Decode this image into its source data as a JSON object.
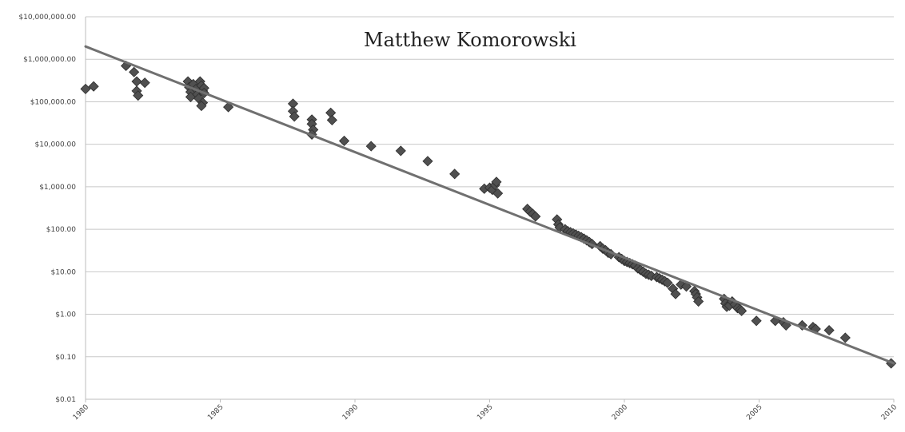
{
  "chart_data": {
    "type": "scatter",
    "annotation": "Matthew Komorowski",
    "y_scale": "log",
    "ylim": [
      0.01,
      10000000
    ],
    "xlim": [
      1980,
      2010
    ],
    "grid": true,
    "y_tick_values": [
      10000000,
      1000000,
      100000,
      10000,
      1000,
      100,
      10,
      1,
      0.1,
      0.01
    ],
    "y_tick_labels": [
      "$10,000,000.00",
      "$1,000,000.00",
      "$100,000.00",
      "$10,000.00",
      "$1,000.00",
      "$100.00",
      "$10.00",
      "$1.00",
      "$0.10",
      "$0.01"
    ],
    "x_tick_values": [
      1980,
      1985,
      1990,
      1995,
      2000,
      2005,
      2010
    ],
    "x_tick_labels": [
      "1980",
      "1985",
      "1990",
      "1995",
      "2000",
      "2005",
      "2010"
    ],
    "trendline": {
      "x": [
        1980,
        2010
      ],
      "y": [
        2000000,
        0.07
      ]
    },
    "marker_color": "#505050",
    "trend_color": "#707070",
    "series": [
      {
        "points": [
          [
            1980.0,
            200000
          ],
          [
            1980.3,
            230000
          ],
          [
            1981.5,
            700000
          ],
          [
            1981.8,
            500000
          ],
          [
            1981.9,
            300000
          ],
          [
            1981.9,
            180000
          ],
          [
            1981.95,
            140000
          ],
          [
            1982.2,
            280000
          ],
          [
            1983.8,
            300000
          ],
          [
            1983.85,
            220000
          ],
          [
            1983.9,
            170000
          ],
          [
            1983.9,
            130000
          ],
          [
            1984.0,
            260000
          ],
          [
            1984.1,
            200000
          ],
          [
            1984.15,
            150000
          ],
          [
            1984.2,
            120000
          ],
          [
            1984.25,
            300000
          ],
          [
            1984.3,
            240000
          ],
          [
            1984.35,
            180000
          ],
          [
            1984.35,
            95000
          ],
          [
            1984.3,
            80000
          ],
          [
            1984.4,
            210000
          ],
          [
            1984.4,
            160000
          ],
          [
            1985.3,
            75000
          ],
          [
            1987.7,
            90000
          ],
          [
            1987.7,
            60000
          ],
          [
            1987.75,
            45000
          ],
          [
            1988.4,
            38000
          ],
          [
            1988.4,
            30000
          ],
          [
            1988.45,
            22000
          ],
          [
            1988.4,
            17000
          ],
          [
            1989.1,
            55000
          ],
          [
            1989.15,
            37000
          ],
          [
            1989.6,
            12000
          ],
          [
            1990.6,
            9000
          ],
          [
            1991.7,
            7000
          ],
          [
            1992.7,
            4000
          ],
          [
            1993.7,
            2000
          ],
          [
            1994.8,
            900
          ],
          [
            1995.0,
            950
          ],
          [
            1995.1,
            850
          ],
          [
            1995.2,
            1100
          ],
          [
            1995.25,
            1300
          ],
          [
            1995.3,
            700
          ],
          [
            1996.4,
            300
          ],
          [
            1996.5,
            260
          ],
          [
            1996.6,
            230
          ],
          [
            1996.7,
            200
          ],
          [
            1997.5,
            170
          ],
          [
            1997.55,
            130
          ],
          [
            1997.6,
            110
          ],
          [
            1997.8,
            100
          ],
          [
            1997.9,
            90
          ],
          [
            1998.0,
            85
          ],
          [
            1998.1,
            80
          ],
          [
            1998.2,
            75
          ],
          [
            1998.3,
            70
          ],
          [
            1998.4,
            65
          ],
          [
            1998.5,
            60
          ],
          [
            1998.6,
            55
          ],
          [
            1998.7,
            50
          ],
          [
            1998.8,
            45
          ],
          [
            1999.1,
            40
          ],
          [
            1999.2,
            35
          ],
          [
            1999.3,
            32
          ],
          [
            1999.4,
            28
          ],
          [
            1999.5,
            26
          ],
          [
            1999.8,
            22
          ],
          [
            1999.9,
            20
          ],
          [
            2000.0,
            18
          ],
          [
            2000.1,
            17
          ],
          [
            2000.2,
            16
          ],
          [
            2000.3,
            15
          ],
          [
            2000.4,
            14
          ],
          [
            2000.5,
            12
          ],
          [
            2000.6,
            11
          ],
          [
            2000.7,
            10
          ],
          [
            2000.8,
            9
          ],
          [
            2000.9,
            8.5
          ],
          [
            2001.0,
            8
          ],
          [
            2001.2,
            7.5
          ],
          [
            2001.3,
            7
          ],
          [
            2001.4,
            6.5
          ],
          [
            2001.5,
            6
          ],
          [
            2001.6,
            5.5
          ],
          [
            2001.8,
            4
          ],
          [
            2001.9,
            3
          ],
          [
            2002.1,
            5
          ],
          [
            2002.3,
            4.5
          ],
          [
            2002.6,
            3.5
          ],
          [
            2002.65,
            3
          ],
          [
            2002.7,
            2.5
          ],
          [
            2002.75,
            2
          ],
          [
            2003.7,
            2.3
          ],
          [
            2003.75,
            1.8
          ],
          [
            2003.8,
            1.5
          ],
          [
            2003.9,
            1.6
          ],
          [
            2004.0,
            2
          ],
          [
            2004.1,
            1.7
          ],
          [
            2004.2,
            1.4
          ],
          [
            2004.3,
            1.3
          ],
          [
            2004.35,
            1.2
          ],
          [
            2004.9,
            0.7
          ],
          [
            2005.6,
            0.7
          ],
          [
            2005.9,
            0.65
          ],
          [
            2006.0,
            0.55
          ],
          [
            2006.6,
            0.55
          ],
          [
            2007.0,
            0.5
          ],
          [
            2007.1,
            0.45
          ],
          [
            2007.6,
            0.42
          ],
          [
            2008.2,
            0.28
          ],
          [
            2009.9,
            0.07
          ]
        ]
      }
    ]
  }
}
